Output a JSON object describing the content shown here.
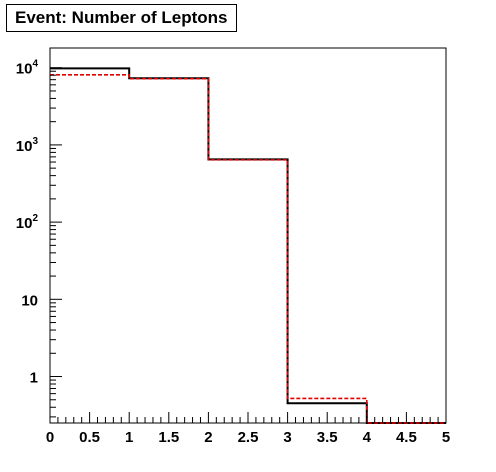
{
  "chart_data": {
    "type": "histogram",
    "title": "Event: Number of Leptons",
    "xlabel": "",
    "ylabel": "",
    "xlim": [
      0,
      5
    ],
    "ylim": [
      0.25,
      18000
    ],
    "y_scale": "log",
    "grid": false,
    "x_tick_labels": [
      "0",
      "0.5",
      "1",
      "1.5",
      "2",
      "2.5",
      "3",
      "3.5",
      "4",
      "4.5",
      "5"
    ],
    "y_tick_labels": [
      {
        "value": 1,
        "base": "1",
        "exp": ""
      },
      {
        "value": 10,
        "base": "10",
        "exp": ""
      },
      {
        "value": 100,
        "base": "10",
        "exp": "2"
      },
      {
        "value": 1000,
        "base": "10",
        "exp": "3"
      },
      {
        "value": 10000,
        "base": "10",
        "exp": "4"
      }
    ],
    "bin_edges": [
      0,
      1,
      2,
      3,
      4,
      5
    ],
    "series": [
      {
        "color": "#000000",
        "style": "solid",
        "values": [
          9800,
          7300,
          650,
          0.45,
          0
        ]
      },
      {
        "color": "#e00000",
        "style": "dashed",
        "values": [
          8100,
          7200,
          640,
          0.52,
          0
        ]
      }
    ]
  }
}
